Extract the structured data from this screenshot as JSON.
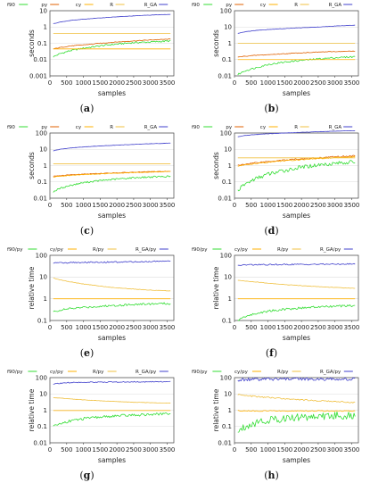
{
  "colors": {
    "f90": "#33dd33",
    "py": "#e06000",
    "cy": "#ffb000",
    "R": "#f0c040",
    "R_GA": "#4040cc",
    "grid": "#dddddd",
    "axis": "#444444"
  },
  "chart_data": [
    {
      "panel": "a",
      "caption": "(a)",
      "type": "line",
      "xlabel": "samples",
      "ylabel": "seconds",
      "xticks": [
        "0",
        "500",
        "1000",
        "1500",
        "2000",
        "2500",
        "3000",
        "3500"
      ],
      "yticks": [
        "0.001",
        "0.01",
        "0.1",
        "1",
        "10"
      ],
      "xlim": [
        0,
        3700
      ],
      "ylim_log10": [
        -3,
        1
      ],
      "legend": [
        "f90",
        "py",
        "cy",
        "R",
        "R_GA"
      ],
      "series": [
        {
          "name": "f90",
          "noise": 0.05,
          "x": [
            100,
            300,
            600,
            1000,
            1500,
            2000,
            2500,
            3000,
            3600
          ],
          "y": [
            0.015,
            0.023,
            0.035,
            0.05,
            0.07,
            0.09,
            0.11,
            0.12,
            0.14
          ]
        },
        {
          "name": "py",
          "noise": 0.02,
          "x": [
            100,
            300,
            600,
            1000,
            1500,
            2000,
            2500,
            3000,
            3600
          ],
          "y": [
            0.045,
            0.055,
            0.068,
            0.08,
            0.1,
            0.12,
            0.14,
            0.16,
            0.18
          ]
        },
        {
          "name": "cy",
          "noise": 0,
          "x": [
            100,
            3600
          ],
          "y": [
            0.045,
            0.045
          ]
        },
        {
          "name": "R",
          "noise": 0,
          "x": [
            100,
            3600
          ],
          "y": [
            0.4,
            0.4
          ]
        },
        {
          "name": "R_GA",
          "noise": 0.01,
          "x": [
            100,
            300,
            600,
            1000,
            1500,
            2000,
            2500,
            3000,
            3600
          ],
          "y": [
            1.6,
            2.0,
            2.5,
            3.0,
            3.6,
            4.2,
            4.8,
            5.4,
            6.0
          ]
        }
      ]
    },
    {
      "panel": "b",
      "caption": "(b)",
      "type": "line",
      "xlabel": "samples",
      "ylabel": "seconds",
      "xticks": [
        "0",
        "500",
        "1000",
        "1500",
        "2000",
        "2500",
        "3000",
        "3500"
      ],
      "yticks": [
        "0.01",
        "0.1",
        "1",
        "10",
        "100"
      ],
      "xlim": [
        0,
        3700
      ],
      "ylim_log10": [
        -2,
        2
      ],
      "legend": [
        "f90",
        "py",
        "cy",
        "R",
        "R_GA"
      ],
      "series": [
        {
          "name": "f90",
          "noise": 0.05,
          "x": [
            100,
            300,
            600,
            1000,
            1500,
            2000,
            2500,
            3000,
            3600
          ],
          "y": [
            0.012,
            0.02,
            0.03,
            0.05,
            0.07,
            0.09,
            0.11,
            0.13,
            0.15
          ]
        },
        {
          "name": "py",
          "noise": 0.02,
          "x": [
            100,
            300,
            600,
            1000,
            1500,
            2000,
            2500,
            3000,
            3600
          ],
          "y": [
            0.14,
            0.16,
            0.18,
            0.2,
            0.23,
            0.26,
            0.29,
            0.31,
            0.33
          ]
        },
        {
          "name": "cy",
          "noise": 0,
          "x": [
            100,
            3600
          ],
          "y": [
            0.1,
            0.1
          ]
        },
        {
          "name": "R",
          "noise": 0,
          "x": [
            100,
            3600
          ],
          "y": [
            1.0,
            1.0
          ]
        },
        {
          "name": "R_GA",
          "noise": 0.01,
          "x": [
            100,
            300,
            600,
            1000,
            1500,
            2000,
            2500,
            3000,
            3600
          ],
          "y": [
            4.0,
            5.0,
            6.0,
            7.0,
            8.0,
            9.0,
            10.0,
            11.5,
            13.0
          ]
        }
      ]
    },
    {
      "panel": "c",
      "caption": "(c)",
      "type": "line",
      "xlabel": "samples",
      "ylabel": "seconds",
      "xticks": [
        "0",
        "500",
        "1000",
        "1500",
        "2000",
        "2500",
        "3000",
        "3500"
      ],
      "yticks": [
        "0.01",
        "0.1",
        "1",
        "10",
        "100"
      ],
      "xlim": [
        0,
        3700
      ],
      "ylim_log10": [
        -2,
        2
      ],
      "legend": [
        "f90",
        "py",
        "cy",
        "R",
        "R_GA"
      ],
      "series": [
        {
          "name": "f90",
          "noise": 0.05,
          "x": [
            100,
            300,
            600,
            1000,
            1500,
            2000,
            2500,
            3000,
            3600
          ],
          "y": [
            0.025,
            0.04,
            0.06,
            0.09,
            0.12,
            0.15,
            0.18,
            0.2,
            0.22
          ]
        },
        {
          "name": "py",
          "noise": 0.02,
          "x": [
            100,
            300,
            600,
            1000,
            1500,
            2000,
            2500,
            3000,
            3600
          ],
          "y": [
            0.22,
            0.24,
            0.27,
            0.3,
            0.33,
            0.36,
            0.39,
            0.42,
            0.45
          ]
        },
        {
          "name": "cy",
          "noise": 0.02,
          "x": [
            100,
            300,
            600,
            1000,
            1500,
            2000,
            2500,
            3000,
            3600
          ],
          "y": [
            0.2,
            0.22,
            0.25,
            0.28,
            0.31,
            0.34,
            0.37,
            0.4,
            0.43
          ]
        },
        {
          "name": "R",
          "noise": 0,
          "x": [
            100,
            3600
          ],
          "y": [
            1.3,
            1.3
          ]
        },
        {
          "name": "R_GA",
          "noise": 0.01,
          "x": [
            100,
            300,
            600,
            1000,
            1500,
            2000,
            2500,
            3000,
            3600
          ],
          "y": [
            8.0,
            10.0,
            12.0,
            14.0,
            16.0,
            18.0,
            20.0,
            22.0,
            24.0
          ]
        }
      ]
    },
    {
      "panel": "d",
      "caption": "(d)",
      "type": "line",
      "xlabel": "samples",
      "ylabel": "seconds",
      "xticks": [
        "0",
        "500",
        "1000",
        "1500",
        "2000",
        "2500",
        "3000",
        "3500"
      ],
      "yticks": [
        "0.01",
        "0.1",
        "1",
        "10",
        "100"
      ],
      "xlim": [
        0,
        3700
      ],
      "ylim_log10": [
        -2,
        2
      ],
      "legend": [
        "f90",
        "py",
        "cy",
        "R",
        "R_GA"
      ],
      "series": [
        {
          "name": "f90",
          "noise": 0.12,
          "x": [
            100,
            300,
            600,
            1000,
            1500,
            2000,
            2500,
            3000,
            3600
          ],
          "y": [
            0.03,
            0.07,
            0.15,
            0.3,
            0.5,
            0.8,
            1.1,
            1.4,
            1.7
          ]
        },
        {
          "name": "py",
          "noise": 0.04,
          "x": [
            100,
            300,
            600,
            1000,
            1500,
            2000,
            2500,
            3000,
            3600
          ],
          "y": [
            1.0,
            1.2,
            1.5,
            1.8,
            2.2,
            2.6,
            3.0,
            3.5,
            4.0
          ]
        },
        {
          "name": "cy",
          "noise": 0.03,
          "x": [
            100,
            300,
            600,
            1000,
            1500,
            2000,
            2500,
            3000,
            3600
          ],
          "y": [
            0.9,
            1.1,
            1.3,
            1.6,
            2.0,
            2.3,
            2.7,
            3.1,
            3.5
          ]
        },
        {
          "name": "R",
          "noise": 0,
          "x": [
            100,
            3600
          ],
          "y": [
            3.0,
            3.0
          ]
        },
        {
          "name": "R_GA",
          "noise": 0.01,
          "x": [
            100,
            300,
            600,
            1000,
            1500,
            2000,
            2500,
            3000,
            3600
          ],
          "y": [
            60,
            70,
            80,
            90,
            100,
            110,
            120,
            130,
            140
          ]
        }
      ]
    },
    {
      "panel": "e",
      "caption": "(e)",
      "type": "line",
      "xlabel": "samples",
      "ylabel": "relative time",
      "xticks": [
        "0",
        "500",
        "1000",
        "1500",
        "2000",
        "2500",
        "3000",
        "3500"
      ],
      "yticks": [
        "0.1",
        "1",
        "10",
        "100"
      ],
      "xlim": [
        0,
        3700
      ],
      "ylim_log10": [
        -1,
        2
      ],
      "legend": [
        "f90/py",
        "cy/py",
        "R/py",
        "R_GA/py"
      ],
      "series": [
        {
          "name": "f90/py",
          "noise": 0.05,
          "x": [
            100,
            300,
            600,
            1000,
            1500,
            2000,
            2500,
            3000,
            3600
          ],
          "y": [
            0.25,
            0.3,
            0.35,
            0.4,
            0.45,
            0.5,
            0.55,
            0.58,
            0.6
          ]
        },
        {
          "name": "cy/py",
          "noise": 0,
          "x": [
            100,
            3600
          ],
          "y": [
            1.0,
            1.0
          ]
        },
        {
          "name": "R/py",
          "noise": 0.01,
          "x": [
            100,
            300,
            600,
            1000,
            1500,
            2000,
            2500,
            3000,
            3600
          ],
          "y": [
            9.0,
            7.5,
            6.0,
            4.8,
            3.8,
            3.2,
            2.8,
            2.5,
            2.3
          ]
        },
        {
          "name": "R_GA/py",
          "noise": 0.03,
          "x": [
            100,
            300,
            600,
            1000,
            1500,
            2000,
            2500,
            3000,
            3600
          ],
          "y": [
            45,
            45,
            46,
            47,
            48,
            49,
            50,
            52,
            55
          ]
        }
      ]
    },
    {
      "panel": "f",
      "caption": "(f)",
      "type": "line",
      "xlabel": "samples",
      "ylabel": "relative time",
      "xticks": [
        "0",
        "500",
        "1000",
        "1500",
        "2000",
        "2500",
        "3000",
        "3500"
      ],
      "yticks": [
        "0.1",
        "1",
        "10",
        "100"
      ],
      "xlim": [
        0,
        3700
      ],
      "ylim_log10": [
        -1,
        2
      ],
      "legend": [
        "f90/py",
        "cy/py",
        "R/py",
        "R_GA/py"
      ],
      "series": [
        {
          "name": "f90/py",
          "noise": 0.05,
          "x": [
            100,
            300,
            600,
            1000,
            1500,
            2000,
            2500,
            3000,
            3600
          ],
          "y": [
            0.1,
            0.15,
            0.2,
            0.27,
            0.33,
            0.38,
            0.42,
            0.45,
            0.48
          ]
        },
        {
          "name": "cy/py",
          "noise": 0,
          "x": [
            100,
            3600
          ],
          "y": [
            1.0,
            1.0
          ]
        },
        {
          "name": "R/py",
          "noise": 0.01,
          "x": [
            100,
            300,
            600,
            1000,
            1500,
            2000,
            2500,
            3000,
            3600
          ],
          "y": [
            7.0,
            6.5,
            6.0,
            5.2,
            4.5,
            4.0,
            3.6,
            3.3,
            3.0
          ]
        },
        {
          "name": "R_GA/py",
          "noise": 0.03,
          "x": [
            100,
            300,
            600,
            1000,
            1500,
            2000,
            2500,
            3000,
            3600
          ],
          "y": [
            35,
            36,
            37,
            37,
            38,
            38,
            39,
            39,
            40
          ]
        }
      ]
    },
    {
      "panel": "g",
      "caption": "(g)",
      "type": "line",
      "xlabel": "samples",
      "ylabel": "relative time",
      "xticks": [
        "0",
        "500",
        "1000",
        "1500",
        "2000",
        "2500",
        "3000",
        "3500"
      ],
      "yticks": [
        "0.01",
        "0.1",
        "1",
        "10",
        "100"
      ],
      "xlim": [
        0,
        3700
      ],
      "ylim_log10": [
        -2,
        2
      ],
      "legend": [
        "f90/py",
        "cy/py",
        "R/py",
        "R_GA/py"
      ],
      "series": [
        {
          "name": "f90/py",
          "noise": 0.08,
          "x": [
            100,
            300,
            600,
            1000,
            1500,
            2000,
            2500,
            3000,
            3600
          ],
          "y": [
            0.1,
            0.15,
            0.22,
            0.3,
            0.38,
            0.45,
            0.5,
            0.55,
            0.6
          ]
        },
        {
          "name": "cy/py",
          "noise": 0,
          "x": [
            100,
            3600
          ],
          "y": [
            0.95,
            0.95
          ]
        },
        {
          "name": "R/py",
          "noise": 0.01,
          "x": [
            100,
            300,
            600,
            1000,
            1500,
            2000,
            2500,
            3000,
            3600
          ],
          "y": [
            6.0,
            5.5,
            5.0,
            4.3,
            3.8,
            3.4,
            3.1,
            2.9,
            2.7
          ]
        },
        {
          "name": "R_GA/py",
          "noise": 0.03,
          "x": [
            100,
            300,
            600,
            1000,
            1500,
            2000,
            2500,
            3000,
            3600
          ],
          "y": [
            40,
            45,
            50,
            52,
            53,
            54,
            55,
            55,
            56
          ]
        }
      ]
    },
    {
      "panel": "h",
      "caption": "(h)",
      "type": "line",
      "xlabel": "samples",
      "ylabel": "relative time",
      "xticks": [
        "0",
        "500",
        "1000",
        "1500",
        "2000",
        "2500",
        "3000",
        "3500"
      ],
      "yticks": [
        "0.01",
        "0.1",
        "1",
        "10",
        "100"
      ],
      "xlim": [
        0,
        3700
      ],
      "ylim_log10": [
        -2,
        2
      ],
      "legend": [
        "f90/py",
        "cy/py",
        "R/py",
        "R_GA/py"
      ],
      "series": [
        {
          "name": "f90/py",
          "noise": 0.25,
          "x": [
            100,
            300,
            600,
            1000,
            1500,
            2000,
            2500,
            3000,
            3600
          ],
          "y": [
            0.05,
            0.1,
            0.17,
            0.25,
            0.32,
            0.38,
            0.42,
            0.45,
            0.47
          ]
        },
        {
          "name": "cy/py",
          "noise": 0.03,
          "x": [
            100,
            300,
            600,
            1000,
            1500,
            2000,
            2500,
            3000,
            3600
          ],
          "y": [
            0.9,
            0.9,
            0.9,
            0.9,
            0.9,
            0.9,
            0.9,
            0.9,
            0.9
          ]
        },
        {
          "name": "R/py",
          "noise": 0.04,
          "x": [
            100,
            300,
            600,
            1000,
            1500,
            2000,
            2500,
            3000,
            3600
          ],
          "y": [
            9.0,
            8.0,
            7.0,
            6.0,
            5.0,
            4.3,
            3.8,
            3.4,
            3.0
          ]
        },
        {
          "name": "R_GA/py",
          "noise": 0.1,
          "x": [
            100,
            300,
            600,
            1000,
            1500,
            2000,
            2500,
            3000,
            3600
          ],
          "y": [
            70,
            75,
            78,
            80,
            80,
            80,
            80,
            80,
            80
          ]
        }
      ]
    }
  ]
}
